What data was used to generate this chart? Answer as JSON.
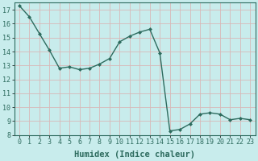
{
  "x": [
    0,
    1,
    2,
    3,
    4,
    5,
    6,
    7,
    8,
    9,
    10,
    11,
    12,
    13,
    14,
    15,
    16,
    17,
    18,
    19,
    20,
    21,
    22,
    23
  ],
  "y": [
    17.3,
    16.5,
    15.3,
    14.1,
    12.8,
    12.9,
    12.7,
    12.8,
    13.1,
    13.5,
    14.7,
    15.1,
    15.4,
    15.6,
    13.9,
    8.3,
    8.4,
    8.8,
    9.5,
    9.6,
    9.5,
    9.1,
    9.2,
    9.1
  ],
  "line_color": "#2d6b5e",
  "marker": "D",
  "marker_size": 2.0,
  "bg_color": "#c8ecec",
  "grid_color": "#d8b8b8",
  "xlabel": "Humidex (Indice chaleur)",
  "ylim": [
    8,
    17.5
  ],
  "xlim": [
    -0.5,
    23.5
  ],
  "yticks": [
    8,
    9,
    10,
    11,
    12,
    13,
    14,
    15,
    16,
    17
  ],
  "xticks": [
    0,
    1,
    2,
    3,
    4,
    5,
    6,
    7,
    8,
    9,
    10,
    11,
    12,
    13,
    14,
    15,
    16,
    17,
    18,
    19,
    20,
    21,
    22,
    23
  ],
  "tick_fontsize": 6,
  "xlabel_fontsize": 7.5,
  "line_width": 1.0
}
